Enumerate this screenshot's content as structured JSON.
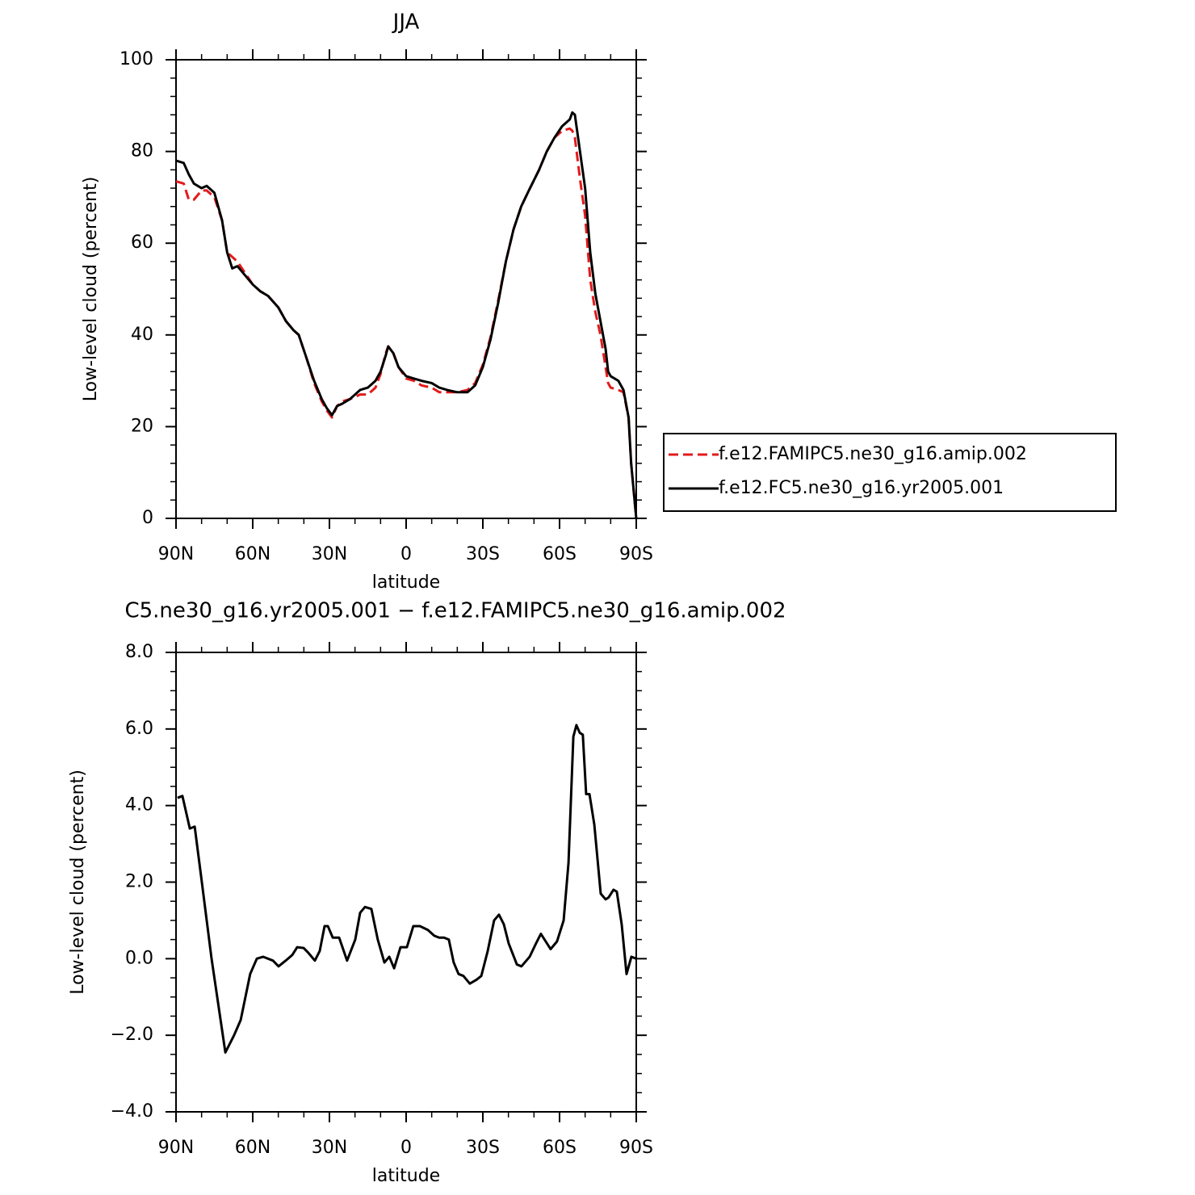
{
  "chart_data": [
    {
      "type": "line",
      "title": "JJA",
      "xlabel": "latitude",
      "ylabel": "Low-level cloud (percent)",
      "x": [
        90,
        87,
        85,
        83,
        80,
        78,
        75,
        72,
        70,
        68,
        66,
        63,
        60,
        57,
        54,
        50,
        47,
        44,
        42,
        39,
        36,
        33,
        31,
        29,
        27,
        25,
        22,
        18,
        15,
        12,
        10,
        8,
        7,
        5,
        3,
        0,
        -3,
        -6,
        -10,
        -13,
        -16,
        -20,
        -24,
        -27,
        -30,
        -33,
        -36,
        -39,
        -42,
        -45,
        -48,
        -52,
        -55,
        -58,
        -61,
        -64,
        -65,
        -66,
        -68,
        -70,
        -72,
        -74,
        -76,
        -78,
        -79,
        -80,
        -83,
        -85,
        -87,
        -88,
        -90
      ],
      "series": [
        {
          "name": "f.e12.FAMIPC5.ne30_g16.amip.002",
          "color": "#e31a1c",
          "linestyle": "dashed",
          "values": [
            73.5,
            73,
            69.5,
            69.5,
            71.5,
            71.5,
            70,
            65,
            58,
            57,
            56,
            53.5,
            51,
            49.5,
            48.5,
            46,
            43,
            41,
            40,
            35,
            29.5,
            25.5,
            23.5,
            22,
            24.5,
            25.5,
            26,
            27,
            27,
            28.5,
            31.5,
            36,
            37.5,
            36,
            33,
            30.5,
            30,
            29,
            28.5,
            27.5,
            27.5,
            27.5,
            28,
            29.5,
            33.5,
            39.5,
            47.5,
            56,
            63,
            68,
            71.5,
            76,
            80,
            83,
            84.5,
            85,
            84.5,
            83,
            74,
            66,
            52,
            45,
            40,
            33,
            29.5,
            28.5,
            28,
            27.5,
            22,
            12,
            0
          ]
        },
        {
          "name": "f.e12.FC5.ne30_g16.yr2005.001",
          "color": "#000000",
          "linestyle": "solid",
          "values": [
            78,
            77.5,
            75,
            73,
            72,
            72.5,
            71,
            65,
            58,
            54.5,
            55,
            53,
            51,
            49.5,
            48.5,
            46,
            43,
            41,
            40,
            35,
            30,
            26,
            24,
            22.5,
            24.5,
            25,
            26,
            28,
            28.5,
            30,
            32,
            35.5,
            37.5,
            36,
            33,
            31,
            30.5,
            30,
            29.5,
            28.5,
            28,
            27.5,
            27.5,
            29,
            33,
            39,
            47,
            56,
            63,
            68,
            71.5,
            76,
            80,
            83,
            85.5,
            87,
            88.5,
            88,
            80,
            72,
            58,
            49,
            43,
            37,
            32,
            31,
            30,
            28,
            22,
            12,
            0
          ]
        }
      ],
      "xlim": [
        90,
        -90
      ],
      "xticks": [
        {
          "value": 90,
          "label": "90N"
        },
        {
          "value": 60,
          "label": "60N"
        },
        {
          "value": 30,
          "label": "30N"
        },
        0,
        {
          "value": -30,
          "label": "30S"
        },
        {
          "value": -60,
          "label": "60S"
        },
        {
          "value": -90,
          "label": "90S"
        }
      ],
      "xminorticks": [
        80,
        70,
        50,
        40,
        20,
        10,
        -10,
        -20,
        -40,
        -50,
        -70,
        -80
      ],
      "ylim": [
        0,
        100
      ],
      "yticks": [
        0,
        20,
        40,
        60,
        80,
        100
      ],
      "yminorticks": [
        4,
        8,
        12,
        16,
        24,
        28,
        32,
        36,
        44,
        48,
        52,
        56,
        64,
        68,
        72,
        76,
        84,
        88,
        92,
        96
      ],
      "legend": "right"
    },
    {
      "type": "line",
      "title": "C5.ne30_g16.yr2005.001 − f.e12.FAMIPC5.ne30_g16.amip.002",
      "xlabel": "latitude",
      "ylabel": "Low-level cloud (percent)",
      "x": [
        89.4,
        87.5,
        84.6,
        82.7,
        79.9,
        76.1,
        70.7,
        67.3,
        64.7,
        61,
        58.4,
        55.9,
        52.1,
        49.9,
        47.1,
        44.5,
        42.6,
        40.1,
        38.2,
        35.7,
        33.8,
        31.9,
        30.6,
        28.7,
        26.2,
        23.1,
        19.9,
        18,
        16.1,
        13.6,
        11.1,
        8.5,
        6.6,
        4.7,
        2.2,
        -0.3,
        -2.8,
        -5.4,
        -8.5,
        -11,
        -12.9,
        -14.8,
        -16.7,
        -18.6,
        -20.5,
        -22.4,
        -24.9,
        -27.5,
        -29.4,
        -31.9,
        -34.4,
        -36.3,
        -38.2,
        -40.1,
        -43.3,
        -45.1,
        -48.3,
        -50.8,
        -52.7,
        -54.6,
        -56.5,
        -59,
        -61.6,
        -63.5,
        -65.4,
        -66.6,
        -67.9,
        -69.1,
        -70.4,
        -71.7,
        -73.6,
        -76.1,
        -78,
        -79.2,
        -81.1,
        -82.4,
        -84.3,
        -86.2,
        -88.1,
        -90
      ],
      "series": [
        {
          "color": "#000000",
          "linestyle": "solid",
          "values": [
            4.2,
            4.25,
            3.4,
            3.45,
            2.0,
            0.0,
            -2.45,
            -2.0,
            -1.6,
            -0.4,
            0.0,
            0.05,
            -0.05,
            -0.2,
            -0.05,
            0.1,
            0.3,
            0.28,
            0.15,
            -0.05,
            0.2,
            0.85,
            0.85,
            0.55,
            0.55,
            -0.05,
            0.5,
            1.2,
            1.35,
            1.3,
            0.5,
            -0.1,
            0.05,
            -0.25,
            0.3,
            0.3,
            0.85,
            0.85,
            0.75,
            0.6,
            0.55,
            0.55,
            0.5,
            -0.1,
            -0.4,
            -0.45,
            -0.65,
            -0.55,
            -0.45,
            0.2,
            1.0,
            1.15,
            0.9,
            0.4,
            -0.15,
            -0.2,
            0.05,
            0.4,
            0.65,
            0.45,
            0.25,
            0.45,
            1.0,
            2.5,
            5.8,
            6.1,
            5.9,
            5.85,
            4.3,
            4.3,
            3.5,
            1.7,
            1.55,
            1.6,
            1.8,
            1.75,
            0.9,
            -0.4,
            0.05,
            0.0
          ]
        }
      ],
      "xlim": [
        90,
        -90
      ],
      "xticks": [
        {
          "value": 90,
          "label": "90N"
        },
        {
          "value": 60,
          "label": "60N"
        },
        {
          "value": 30,
          "label": "30N"
        },
        0,
        {
          "value": -30,
          "label": "30S"
        },
        {
          "value": -60,
          "label": "60S"
        },
        {
          "value": -90,
          "label": "90S"
        }
      ],
      "xminorticks": [
        80,
        70,
        50,
        40,
        20,
        10,
        -10,
        -20,
        -40,
        -50,
        -70,
        -80
      ],
      "ylim": [
        -4,
        8
      ],
      "yticks": [
        {
          "value": -4,
          "label": "−4.0"
        },
        {
          "value": -2,
          "label": "−2.0"
        },
        {
          "value": 0,
          "label": "0.0"
        },
        {
          "value": 2,
          "label": "2.0"
        },
        {
          "value": 4,
          "label": "4.0"
        },
        {
          "value": 6,
          "label": "6.0"
        },
        {
          "value": 8,
          "label": "8.0"
        }
      ],
      "yminorticks": [
        -3.5,
        -3,
        -2.5,
        -1.5,
        -1,
        -0.5,
        0.5,
        1,
        1.5,
        2.5,
        3,
        3.5,
        4.5,
        5,
        5.5,
        6.5,
        7,
        7.5
      ]
    }
  ]
}
